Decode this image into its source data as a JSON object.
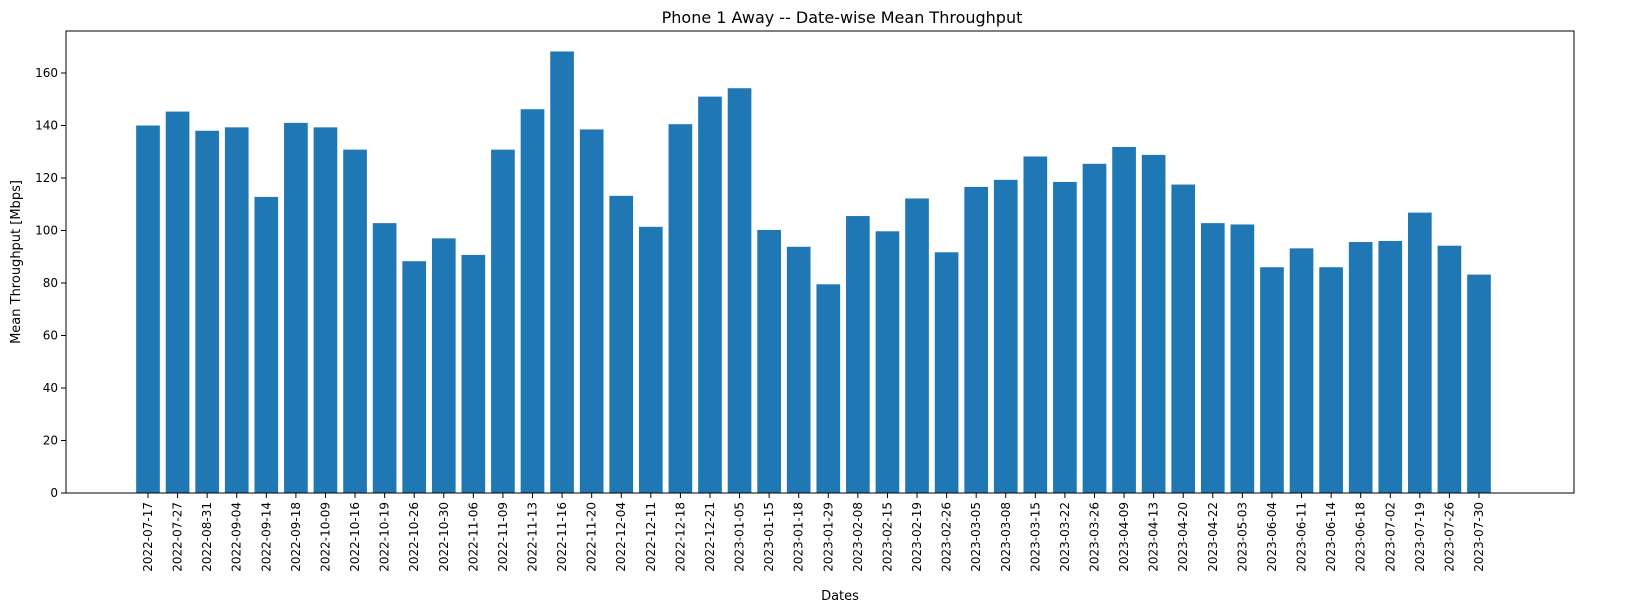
{
  "chart_data": {
    "type": "bar",
    "title": "Phone 1 Away -- Date-wise Mean Throughput",
    "xlabel": "Dates",
    "ylabel": "Mean Throughput [Mbps]",
    "ylim": [
      0,
      176
    ],
    "yticks": [
      0,
      20,
      40,
      60,
      80,
      100,
      120,
      140,
      160
    ],
    "grid": false,
    "bar_color": "#1f77b4",
    "categories": [
      "2022-07-17",
      "2022-07-27",
      "2022-08-31",
      "2022-09-04",
      "2022-09-14",
      "2022-09-18",
      "2022-10-09",
      "2022-10-16",
      "2022-10-19",
      "2022-10-26",
      "2022-10-30",
      "2022-11-06",
      "2022-11-09",
      "2022-11-13",
      "2022-11-16",
      "2022-11-20",
      "2022-12-04",
      "2022-12-11",
      "2022-12-18",
      "2022-12-21",
      "2023-01-05",
      "2023-01-15",
      "2023-01-18",
      "2023-01-29",
      "2023-02-08",
      "2023-02-15",
      "2023-02-19",
      "2023-02-26",
      "2023-03-05",
      "2023-03-08",
      "2023-03-15",
      "2023-03-22",
      "2023-03-26",
      "2023-04-09",
      "2023-04-13",
      "2023-04-20",
      "2023-04-22",
      "2023-05-03",
      "2023-06-04",
      "2023-06-11",
      "2023-06-14",
      "2023-06-18",
      "2023-07-02",
      "2023-07-19",
      "2023-07-26",
      "2023-07-30"
    ],
    "values": [
      140,
      145.3,
      138,
      139.3,
      112.8,
      141,
      139.3,
      130.8,
      102.8,
      88.3,
      97,
      90.7,
      130.8,
      146.2,
      168.2,
      138.5,
      113.2,
      101.4,
      140.5,
      151,
      154.2,
      100.2,
      93.8,
      79.5,
      105.5,
      99.7,
      112.2,
      91.7,
      116.6,
      119.3,
      128.2,
      118.5,
      125.4,
      131.8,
      128.8,
      117.5,
      102.8,
      102.3,
      86,
      93.2,
      86,
      95.6,
      96,
      106.8,
      94.2,
      83.2
    ]
  }
}
